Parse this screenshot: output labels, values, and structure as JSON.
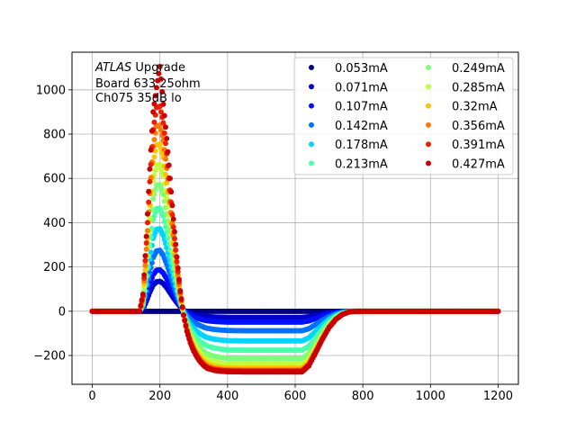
{
  "chart_data": {
    "type": "scatter",
    "title_lines": [
      "Upgrade",
      "Board 633 25ohm",
      "Ch075 35dB lo"
    ],
    "title_italic_prefix": "ATLAS",
    "xlabel": "",
    "ylabel": "",
    "xlim": [
      -60,
      1260
    ],
    "ylim": [
      -330,
      1170
    ],
    "xticks": [
      0,
      200,
      400,
      600,
      800,
      1000,
      1200
    ],
    "yticks": [
      -200,
      0,
      200,
      400,
      600,
      800,
      1000
    ],
    "grid": true,
    "legend_position": "top-right",
    "legend_columns": 2,
    "x": [
      0,
      20,
      40,
      60,
      80,
      100,
      120,
      130,
      140,
      150,
      160,
      170,
      180,
      190,
      200,
      210,
      220,
      230,
      240,
      250,
      260,
      270,
      280,
      290,
      300,
      310,
      320,
      330,
      340,
      360,
      380,
      400,
      450,
      500,
      550,
      600,
      620,
      640,
      660,
      680,
      700,
      720,
      740,
      760,
      780,
      800,
      850,
      900,
      950,
      1000,
      1050,
      1100,
      1150,
      1200
    ],
    "series": [
      {
        "name": "0.053mA",
        "color": "#00007f",
        "values": [
          0,
          0,
          0,
          0,
          0,
          0,
          0,
          0,
          0,
          0,
          0,
          0,
          0,
          0,
          0,
          0,
          0,
          0,
          0,
          0,
          0,
          0,
          0,
          0,
          0,
          0,
          0,
          0,
          0,
          0,
          0,
          0,
          0,
          0,
          0,
          0,
          0,
          0,
          0,
          0,
          0,
          0,
          0,
          0,
          0,
          0,
          0,
          0,
          0,
          0,
          0,
          0,
          0,
          0
        ]
      },
      {
        "name": "0.071mA",
        "color": "#0000c8",
        "values": [
          0,
          0,
          0,
          0,
          0,
          0,
          0,
          0,
          0,
          10,
          45,
          85,
          118,
          133,
          135,
          125,
          106,
          83,
          60,
          39,
          20,
          6,
          -3,
          -9,
          -13,
          -17,
          -20,
          -22,
          -24,
          -26,
          -27,
          -28,
          -28,
          -28,
          -28,
          -28,
          -28,
          -25,
          -19,
          -13,
          -7,
          -3,
          -1,
          0,
          0,
          0,
          0,
          0,
          0,
          0,
          0,
          0,
          0,
          0
        ]
      },
      {
        "name": "0.107mA",
        "color": "#0010ff",
        "values": [
          0,
          0,
          0,
          0,
          0,
          0,
          0,
          0,
          0,
          14,
          62,
          118,
          165,
          185,
          187,
          172,
          146,
          114,
          82,
          52,
          25,
          5,
          -9,
          -18,
          -25,
          -31,
          -36,
          -40,
          -43,
          -46,
          -48,
          -49,
          -49,
          -49,
          -49,
          -49,
          -49,
          -44,
          -33,
          -22,
          -13,
          -6,
          -2,
          0,
          0,
          0,
          0,
          0,
          0,
          0,
          0,
          0,
          0,
          0
        ]
      },
      {
        "name": "0.142mA",
        "color": "#0070ff",
        "values": [
          0,
          0,
          0,
          0,
          0,
          0,
          0,
          0,
          0,
          21,
          91,
          173,
          242,
          272,
          275,
          252,
          212,
          165,
          117,
          72,
          33,
          3,
          -20,
          -36,
          -48,
          -58,
          -66,
          -72,
          -77,
          -82,
          -85,
          -87,
          -88,
          -88,
          -88,
          -88,
          -88,
          -79,
          -60,
          -41,
          -24,
          -12,
          -4,
          -1,
          0,
          0,
          0,
          0,
          0,
          0,
          0,
          0,
          0,
          0
        ]
      },
      {
        "name": "0.178mA",
        "color": "#00d4ff",
        "values": [
          0,
          0,
          0,
          0,
          0,
          0,
          0,
          0,
          0,
          28,
          124,
          235,
          329,
          370,
          372,
          342,
          287,
          221,
          155,
          93,
          39,
          -3,
          -35,
          -59,
          -77,
          -91,
          -103,
          -112,
          -119,
          -126,
          -130,
          -133,
          -134,
          -134,
          -134,
          -134,
          -134,
          -120,
          -92,
          -62,
          -36,
          -18,
          -7,
          -2,
          0,
          0,
          0,
          0,
          0,
          0,
          0,
          0,
          0,
          0
        ]
      },
      {
        "name": "0.213mA",
        "color": "#4cffaa",
        "values": [
          0,
          0,
          0,
          0,
          0,
          0,
          0,
          0,
          0,
          35,
          155,
          295,
          413,
          463,
          465,
          428,
          358,
          276,
          192,
          114,
          45,
          -9,
          -50,
          -81,
          -104,
          -122,
          -137,
          -148,
          -157,
          -166,
          -171,
          -175,
          -176,
          -176,
          -176,
          -176,
          -176,
          -158,
          -121,
          -82,
          -48,
          -24,
          -9,
          -2,
          0,
          0,
          0,
          0,
          0,
          0,
          0,
          0,
          0,
          0
        ]
      },
      {
        "name": "0.249mA",
        "color": "#7dff7a",
        "values": [
          0,
          0,
          0,
          0,
          0,
          0,
          0,
          0,
          0,
          43,
          190,
          362,
          508,
          570,
          572,
          526,
          440,
          339,
          236,
          140,
          55,
          -11,
          -61,
          -99,
          -128,
          -150,
          -168,
          -182,
          -193,
          -203,
          -209,
          -213,
          -214,
          -214,
          -214,
          -214,
          -214,
          -192,
          -147,
          -100,
          -58,
          -29,
          -11,
          -3,
          0,
          0,
          0,
          0,
          0,
          0,
          0,
          0,
          0,
          0
        ]
      },
      {
        "name": "0.285mA",
        "color": "#beff39",
        "values": [
          0,
          0,
          0,
          0,
          0,
          0,
          0,
          0,
          0,
          50,
          222,
          420,
          590,
          660,
          663,
          610,
          510,
          392,
          272,
          160,
          62,
          -14,
          -71,
          -114,
          -146,
          -171,
          -191,
          -206,
          -218,
          -229,
          -235,
          -239,
          -240,
          -240,
          -240,
          -240,
          -240,
          -216,
          -165,
          -112,
          -65,
          -32,
          -12,
          -3,
          0,
          0,
          0,
          0,
          0,
          0,
          0,
          0,
          0,
          0
        ]
      },
      {
        "name": "0.32mA",
        "color": "#ffc400",
        "values": [
          0,
          0,
          0,
          0,
          0,
          0,
          0,
          0,
          0,
          57,
          252,
          478,
          670,
          750,
          755,
          694,
          580,
          446,
          310,
          183,
          71,
          -15,
          -79,
          -126,
          -161,
          -188,
          -209,
          -225,
          -237,
          -248,
          -253,
          -256,
          -257,
          -257,
          -257,
          -257,
          -257,
          -231,
          -177,
          -120,
          -70,
          -35,
          -13,
          -3,
          0,
          0,
          0,
          0,
          0,
          0,
          0,
          0,
          0,
          0
        ]
      },
      {
        "name": "0.356mA",
        "color": "#ff7a00",
        "values": [
          0,
          0,
          0,
          0,
          0,
          0,
          0,
          0,
          0,
          63,
          280,
          532,
          745,
          835,
          840,
          772,
          645,
          496,
          344,
          203,
          78,
          -16,
          -84,
          -134,
          -170,
          -198,
          -220,
          -236,
          -248,
          -258,
          -263,
          -265,
          -266,
          -266,
          -266,
          -266,
          -266,
          -239,
          -183,
          -124,
          -72,
          -36,
          -14,
          -3,
          0,
          0,
          0,
          0,
          0,
          0,
          0,
          0,
          0,
          0
        ]
      },
      {
        "name": "0.391mA",
        "color": "#f21c00",
        "values": [
          0,
          0,
          0,
          0,
          0,
          0,
          0,
          0,
          0,
          70,
          308,
          585,
          820,
          920,
          925,
          851,
          711,
          547,
          380,
          224,
          86,
          -17,
          -88,
          -139,
          -176,
          -204,
          -226,
          -242,
          -254,
          -263,
          -267,
          -269,
          -270,
          -270,
          -270,
          -270,
          -270,
          -243,
          -186,
          -126,
          -73,
          -37,
          -14,
          -3,
          0,
          0,
          0,
          0,
          0,
          0,
          0,
          0,
          0,
          0
        ]
      },
      {
        "name": "0.427mA",
        "color": "#c80000",
        "values": [
          0,
          0,
          0,
          0,
          0,
          0,
          0,
          0,
          0,
          77,
          338,
          642,
          900,
          1010,
          1105,
          935,
          780,
          600,
          416,
          245,
          93,
          -18,
          -91,
          -143,
          -180,
          -208,
          -230,
          -246,
          -258,
          -267,
          -271,
          -273,
          -274,
          -274,
          -274,
          -274,
          -274,
          -247,
          -189,
          -128,
          -74,
          -37,
          -14,
          -3,
          0,
          0,
          0,
          0,
          0,
          0,
          0,
          0,
          0,
          0
        ]
      }
    ]
  }
}
